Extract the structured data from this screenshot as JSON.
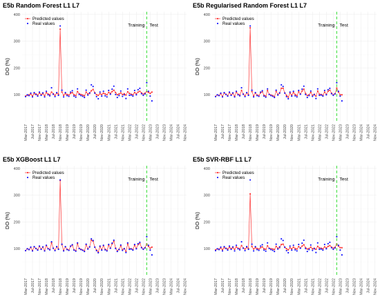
{
  "colors": {
    "predicted": "#ff3333",
    "real": "#1a1aff",
    "split_line": "#33dd33",
    "grid": "#ebebeb"
  },
  "chart_data": [
    {
      "type": "line",
      "title": "E5b Random Forest L1 L7",
      "ylabel": "DO (%)",
      "xlabel": "",
      "ylim": [
        0,
        410
      ],
      "yticks": [
        100,
        200,
        300,
        400
      ],
      "x_tick_labels": [
        "Mar-2017",
        "Jul-2017",
        "Nov-2017",
        "Mar-2018",
        "Jul-2018",
        "Nov-2018",
        "Mar-2019",
        "Jul-2019",
        "Nov-2019",
        "Mar-2020",
        "Jul-2020",
        "Nov-2020",
        "Mar-2021",
        "Jul-2021",
        "Nov-2021",
        "Mar-2022",
        "Jul-2022",
        "Nov-2022",
        "Mar-2023",
        "Jul-2023",
        "Nov-2023",
        "Mar-2024",
        "Jul-2024",
        "Nov-2024"
      ],
      "split_label_left": "Training",
      "split_label_right": "Test",
      "split_x": "2023-01",
      "legend": [
        "Predicted values",
        "Real values"
      ],
      "legend_position": "top-left",
      "peak": {
        "x": "2019-08",
        "predicted": 345,
        "real": 357
      },
      "series": [
        {
          "name": "Predicted values",
          "values": [
            95,
            98,
            100,
            102,
            96,
            104,
            103,
            99,
            106,
            101,
            104,
            97,
            108,
            103,
            100,
            110,
            104,
            98,
            106,
            102,
            345,
            110,
            98,
            104,
            101,
            99,
            105,
            108,
            100,
            97,
            112,
            104,
            101,
            99,
            96,
            110,
            103,
            105,
            115,
            120,
            108,
            100,
            98,
            104,
            101,
            106,
            103,
            100,
            109,
            105,
            112,
            117,
            108,
            100,
            103,
            107,
            101,
            104,
            99,
            111,
            105,
            102,
            100,
            108,
            104,
            110,
            113,
            107,
            102,
            106,
            112,
            109,
            105,
            110
          ]
        },
        {
          "name": "Real values",
          "values": [
            93,
            100,
            97,
            106,
            92,
            108,
            101,
            95,
            110,
            98,
            107,
            92,
            113,
            100,
            96,
            126,
            102,
            93,
            108,
            98,
            357,
            117,
            92,
            108,
            97,
            94,
            110,
            115,
            95,
            91,
            122,
            101,
            97,
            94,
            90,
            117,
            99,
            107,
            137,
            131,
            106,
            93,
            85,
            110,
            95,
            113,
            96,
            92,
            116,
            102,
            121,
            132,
            101,
            90,
            97,
            114,
            94,
            100,
            86,
            122,
            98,
            99,
            95,
            116,
            100,
            119,
            124,
            104,
            98,
            103,
            145,
            113,
            95,
            77
          ]
        }
      ]
    },
    {
      "type": "line",
      "title": "E5b Regularised Random Forest L1 L7",
      "ylabel": "DO (%)",
      "xlabel": "",
      "ylim": [
        0,
        410
      ],
      "yticks": [
        100,
        200,
        300,
        400
      ],
      "x_tick_labels": [
        "Mar-2017",
        "Jul-2017",
        "Nov-2017",
        "Mar-2018",
        "Jul-2018",
        "Nov-2018",
        "Mar-2019",
        "Jul-2019",
        "Nov-2019",
        "Mar-2020",
        "Jul-2020",
        "Nov-2020",
        "Mar-2021",
        "Jul-2021",
        "Nov-2021",
        "Mar-2022",
        "Jul-2022",
        "Nov-2022",
        "Mar-2023",
        "Jul-2023",
        "Nov-2023",
        "Mar-2024",
        "Jul-2024",
        "Nov-2024"
      ],
      "split_label_left": "Training",
      "split_label_right": "Test",
      "split_x": "2023-01",
      "legend": [
        "Predicted values",
        "Real values"
      ],
      "legend_position": "top-left",
      "peak": {
        "x": "2019-08",
        "predicted": 350,
        "real": 357
      },
      "series": [
        {
          "name": "Predicted values",
          "values": [
            94,
            99,
            98,
            104,
            94,
            106,
            102,
            97,
            108,
            100,
            105,
            95,
            110,
            102,
            99,
            116,
            103,
            96,
            107,
            100,
            350,
            112,
            96,
            106,
            99,
            97,
            107,
            111,
            98,
            95,
            116,
            102,
            99,
            97,
            93,
            113,
            101,
            106,
            124,
            124,
            107,
            98,
            91,
            106,
            99,
            108,
            101,
            97,
            111,
            103,
            114,
            121,
            105,
            97,
            100,
            109,
            98,
            102,
            95,
            114,
            102,
            101,
            98,
            110,
            102,
            113,
            117,
            106,
            100,
            104,
            125,
            110,
            100,
            100
          ]
        },
        {
          "name": "Real values",
          "values": [
            93,
            100,
            97,
            106,
            92,
            108,
            101,
            95,
            110,
            98,
            107,
            92,
            113,
            100,
            96,
            126,
            102,
            93,
            108,
            98,
            357,
            117,
            92,
            108,
            97,
            94,
            110,
            115,
            95,
            91,
            122,
            101,
            97,
            94,
            90,
            117,
            99,
            107,
            137,
            131,
            106,
            93,
            85,
            110,
            95,
            113,
            96,
            92,
            116,
            102,
            121,
            132,
            101,
            90,
            97,
            114,
            94,
            100,
            86,
            122,
            98,
            99,
            95,
            116,
            100,
            119,
            124,
            104,
            98,
            103,
            145,
            113,
            95,
            77
          ]
        }
      ]
    },
    {
      "type": "line",
      "title": "E5b XGBoost L1 L7",
      "ylabel": "DO (%)",
      "xlabel": "",
      "ylim": [
        0,
        410
      ],
      "yticks": [
        100,
        200,
        300,
        400
      ],
      "x_tick_labels": [
        "Mar-2017",
        "Jul-2017",
        "Nov-2017",
        "Mar-2018",
        "Jul-2018",
        "Nov-2018",
        "Mar-2019",
        "Jul-2019",
        "Nov-2019",
        "Mar-2020",
        "Jul-2020",
        "Nov-2020",
        "Mar-2021",
        "Jul-2021",
        "Nov-2021",
        "Mar-2022",
        "Jul-2022",
        "Nov-2022",
        "Mar-2023",
        "Jul-2023",
        "Nov-2023",
        "Mar-2024",
        "Jul-2024",
        "Nov-2024"
      ],
      "split_label_left": "Training",
      "split_label_right": "Test",
      "split_x": "2023-01",
      "legend": [
        "Predicted values",
        "Real values"
      ],
      "legend_position": "top-left",
      "peak": {
        "x": "2019-08",
        "predicted": 355,
        "real": 357
      },
      "series": [
        {
          "name": "Predicted values",
          "values": [
            93,
            100,
            97,
            105,
            93,
            107,
            101,
            96,
            109,
            99,
            106,
            93,
            112,
            101,
            97,
            122,
            102,
            94,
            107,
            99,
            355,
            115,
            94,
            107,
            98,
            95,
            109,
            113,
            96,
            93,
            119,
            101,
            98,
            95,
            92,
            115,
            100,
            107,
            132,
            128,
            106,
            95,
            88,
            108,
            97,
            111,
            98,
            94,
            113,
            102,
            118,
            128,
            103,
            92,
            98,
            111,
            96,
            101,
            90,
            118,
            101,
            100,
            97,
            113,
            101,
            116,
            120,
            105,
            99,
            104,
            118,
            109,
            102,
            106
          ]
        },
        {
          "name": "Real values",
          "values": [
            93,
            100,
            97,
            106,
            92,
            108,
            101,
            95,
            110,
            98,
            107,
            92,
            113,
            100,
            96,
            126,
            102,
            93,
            108,
            98,
            357,
            117,
            92,
            108,
            97,
            94,
            110,
            115,
            95,
            91,
            122,
            101,
            97,
            94,
            90,
            117,
            99,
            107,
            137,
            131,
            106,
            93,
            85,
            110,
            95,
            113,
            96,
            92,
            116,
            102,
            121,
            132,
            101,
            90,
            97,
            114,
            94,
            100,
            86,
            122,
            98,
            99,
            95,
            116,
            100,
            119,
            124,
            104,
            98,
            103,
            145,
            113,
            95,
            77
          ]
        }
      ]
    },
    {
      "type": "line",
      "title": "E5b SVR-RBF L1 L7",
      "ylabel": "DO (%)",
      "xlabel": "",
      "ylim": [
        0,
        410
      ],
      "yticks": [
        100,
        200,
        300,
        400
      ],
      "x_tick_labels": [
        "Mar-2017",
        "Jul-2017",
        "Nov-2017",
        "Mar-2018",
        "Jul-2018",
        "Nov-2018",
        "Mar-2019",
        "Jul-2019",
        "Nov-2019",
        "Mar-2020",
        "Jul-2020",
        "Nov-2020",
        "Mar-2021",
        "Jul-2021",
        "Nov-2021",
        "Mar-2022",
        "Jul-2022",
        "Nov-2022",
        "Mar-2023",
        "Jul-2023",
        "Nov-2023",
        "Mar-2024",
        "Jul-2024",
        "Nov-2024"
      ],
      "split_label_left": "Training",
      "split_label_right": "Test",
      "split_x": "2023-01",
      "legend": [
        "Predicted values",
        "Real values"
      ],
      "legend_position": "top-left",
      "peak": {
        "x": "2019-08",
        "predicted": 305,
        "real": 357
      },
      "series": [
        {
          "name": "Predicted values",
          "values": [
            96,
            99,
            99,
            102,
            97,
            104,
            102,
            99,
            105,
            101,
            104,
            98,
            107,
            102,
            100,
            112,
            103,
            99,
            105,
            101,
            305,
            108,
            99,
            104,
            101,
            99,
            104,
            107,
            100,
            98,
            111,
            102,
            100,
            99,
            97,
            109,
            102,
            104,
            116,
            117,
            105,
            100,
            96,
            104,
            100,
            106,
            101,
            99,
            108,
            103,
            110,
            115,
            104,
            99,
            101,
            106,
            100,
            102,
            98,
            109,
            103,
            102,
            100,
            107,
            103,
            109,
            112,
            106,
            102,
            105,
            118,
            110,
            104,
            104
          ]
        },
        {
          "name": "Real values",
          "values": [
            93,
            100,
            97,
            106,
            92,
            108,
            101,
            95,
            110,
            98,
            107,
            92,
            113,
            100,
            96,
            126,
            102,
            93,
            108,
            98,
            357,
            117,
            92,
            108,
            97,
            94,
            110,
            115,
            95,
            91,
            122,
            101,
            97,
            94,
            90,
            117,
            99,
            107,
            137,
            131,
            106,
            93,
            85,
            110,
            95,
            113,
            96,
            92,
            116,
            102,
            121,
            132,
            101,
            90,
            97,
            114,
            94,
            100,
            86,
            122,
            98,
            99,
            95,
            116,
            100,
            119,
            124,
            104,
            98,
            103,
            145,
            113,
            95,
            77
          ]
        }
      ]
    }
  ]
}
